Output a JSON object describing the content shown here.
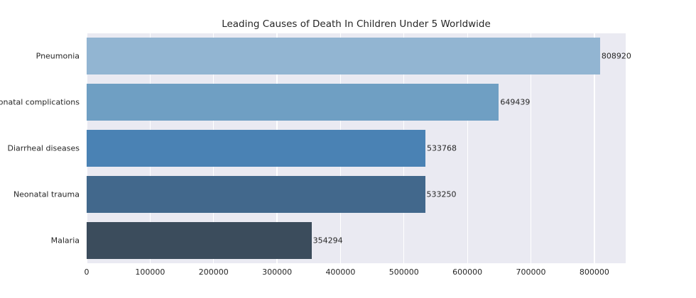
{
  "chart_data": {
    "type": "bar",
    "orientation": "horizontal",
    "title": "Leading Causes of Death In Children Under 5 Worldwide",
    "categories": [
      "Pneumonia",
      "Neonatal complications",
      "Diarrheal diseases",
      "Neonatal trauma",
      "Malaria"
    ],
    "values": [
      808920,
      649439,
      533768,
      533250,
      354294
    ],
    "value_labels": [
      "808920",
      "649439",
      "533768",
      "533250",
      "354294"
    ],
    "bar_colors": [
      "#92b5d2",
      "#6f9fc3",
      "#4a82b4",
      "#42688c",
      "#3b4c5c"
    ],
    "xlabel": "",
    "ylabel": "",
    "xlim": [
      0,
      849366
    ],
    "x_ticks": [
      0,
      100000,
      200000,
      300000,
      400000,
      500000,
      600000,
      700000,
      800000
    ],
    "x_tick_labels": [
      "0",
      "100000",
      "200000",
      "300000",
      "400000",
      "500000",
      "600000",
      "700000",
      "800000"
    ],
    "grid": "vertical-white-gridlines",
    "legend": "none",
    "colors": {
      "plot_background": "#eaeaf2",
      "figure_background": "#ffffff",
      "gridline": "#ffffff",
      "text": "#262626"
    }
  }
}
